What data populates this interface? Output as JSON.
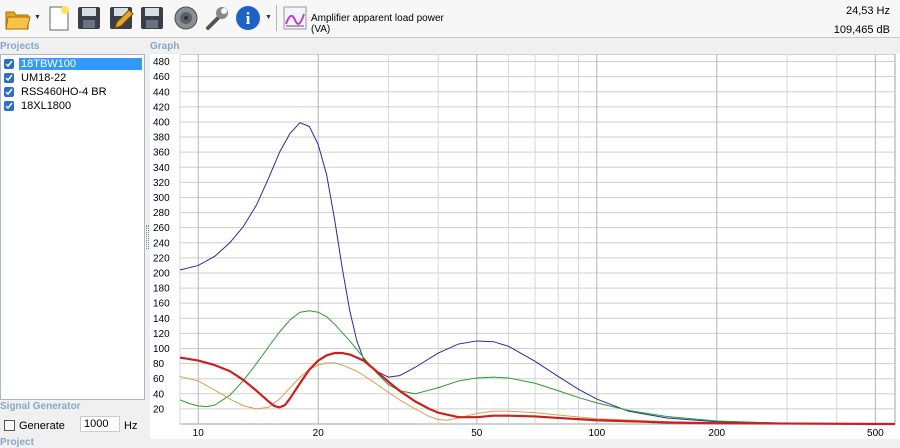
{
  "toolbar": {
    "chart_label": "Amplifier apparent load power (VA)",
    "readout_freq": "24,53 Hz",
    "readout_db": "109,465 dB"
  },
  "sections": {
    "projects": "Projects",
    "graph": "Graph",
    "signal_generator": "Signal Generator",
    "project": "Project"
  },
  "projects": [
    {
      "label": "18TBW100",
      "checked": true,
      "selected": true
    },
    {
      "label": "UM18-22",
      "checked": true,
      "selected": false
    },
    {
      "label": "RSS460HO-4 BR",
      "checked": true,
      "selected": false
    },
    {
      "label": "18XL1800",
      "checked": true,
      "selected": false
    }
  ],
  "generator": {
    "label": "Generate",
    "checked": false,
    "frequency": "1000",
    "unit": "Hz"
  },
  "chart_data": {
    "type": "line",
    "title": "Amplifier apparent load power (VA)",
    "x_scale": "log",
    "xlim": [
      9,
      560
    ],
    "ylim": [
      0,
      490
    ],
    "x_ticks": [
      10,
      20,
      50,
      100,
      200,
      500
    ],
    "y_ticks": [
      20,
      40,
      60,
      80,
      100,
      120,
      140,
      160,
      180,
      200,
      220,
      240,
      260,
      280,
      300,
      320,
      340,
      360,
      380,
      400,
      420,
      440,
      460,
      480
    ],
    "grid": true,
    "series": [
      {
        "color": "#2b2b9a",
        "width": 1,
        "points": [
          [
            9,
            204
          ],
          [
            10,
            210
          ],
          [
            11,
            222
          ],
          [
            12,
            240
          ],
          [
            13,
            262
          ],
          [
            14,
            290
          ],
          [
            15,
            325
          ],
          [
            16,
            360
          ],
          [
            17,
            385
          ],
          [
            18,
            399
          ],
          [
            19,
            394
          ],
          [
            20,
            370
          ],
          [
            21,
            330
          ],
          [
            22,
            270
          ],
          [
            23,
            205
          ],
          [
            24,
            150
          ],
          [
            25,
            110
          ],
          [
            26,
            86
          ],
          [
            28,
            70
          ],
          [
            30,
            62
          ],
          [
            32,
            64
          ],
          [
            35,
            75
          ],
          [
            40,
            94
          ],
          [
            45,
            106
          ],
          [
            50,
            110
          ],
          [
            55,
            109
          ],
          [
            60,
            103
          ],
          [
            70,
            83
          ],
          [
            80,
            63
          ],
          [
            90,
            46
          ],
          [
            100,
            33
          ],
          [
            120,
            17
          ],
          [
            150,
            8
          ],
          [
            200,
            3
          ],
          [
            300,
            1
          ],
          [
            560,
            0
          ]
        ]
      },
      {
        "color": "#2e9a2e",
        "width": 1,
        "points": [
          [
            9,
            32
          ],
          [
            9.5,
            27
          ],
          [
            10,
            24
          ],
          [
            10.5,
            23
          ],
          [
            11,
            25
          ],
          [
            12,
            38
          ],
          [
            13,
            58
          ],
          [
            14,
            80
          ],
          [
            15,
            102
          ],
          [
            16,
            122
          ],
          [
            17,
            138
          ],
          [
            18,
            148
          ],
          [
            19,
            150
          ],
          [
            20,
            148
          ],
          [
            21,
            142
          ],
          [
            22,
            132
          ],
          [
            24,
            110
          ],
          [
            26,
            88
          ],
          [
            28,
            68
          ],
          [
            30,
            52
          ],
          [
            32,
            44
          ],
          [
            35,
            40
          ],
          [
            40,
            48
          ],
          [
            45,
            57
          ],
          [
            50,
            61
          ],
          [
            55,
            62
          ],
          [
            60,
            61
          ],
          [
            70,
            54
          ],
          [
            80,
            44
          ],
          [
            90,
            35
          ],
          [
            100,
            28
          ],
          [
            120,
            18
          ],
          [
            150,
            10
          ],
          [
            200,
            4
          ],
          [
            300,
            1
          ],
          [
            560,
            0
          ]
        ]
      },
      {
        "color": "#d9a050",
        "width": 1,
        "points": [
          [
            9,
            63
          ],
          [
            10,
            57
          ],
          [
            11,
            45
          ],
          [
            12,
            33
          ],
          [
            13,
            24
          ],
          [
            14,
            20
          ],
          [
            15,
            22
          ],
          [
            16,
            33
          ],
          [
            17,
            48
          ],
          [
            18,
            62
          ],
          [
            19,
            72
          ],
          [
            20,
            78
          ],
          [
            21,
            81
          ],
          [
            22,
            81
          ],
          [
            23,
            78
          ],
          [
            25,
            70
          ],
          [
            28,
            53
          ],
          [
            30,
            42
          ],
          [
            32,
            32
          ],
          [
            35,
            20
          ],
          [
            38,
            10
          ],
          [
            40,
            6
          ],
          [
            42,
            5
          ],
          [
            45,
            8
          ],
          [
            50,
            14
          ],
          [
            55,
            17
          ],
          [
            60,
            17
          ],
          [
            70,
            15
          ],
          [
            80,
            12
          ],
          [
            100,
            7
          ],
          [
            150,
            3
          ],
          [
            200,
            1
          ],
          [
            560,
            0
          ]
        ]
      },
      {
        "color": "#cc1f1f",
        "width": 2.2,
        "points": [
          [
            9,
            88
          ],
          [
            10,
            84
          ],
          [
            11,
            78
          ],
          [
            12,
            70
          ],
          [
            13,
            58
          ],
          [
            14,
            44
          ],
          [
            15,
            30
          ],
          [
            15.5,
            24
          ],
          [
            16,
            22
          ],
          [
            16.5,
            25
          ],
          [
            17,
            34
          ],
          [
            18,
            54
          ],
          [
            19,
            72
          ],
          [
            20,
            84
          ],
          [
            21,
            91
          ],
          [
            22,
            94
          ],
          [
            23,
            94
          ],
          [
            24,
            92
          ],
          [
            26,
            84
          ],
          [
            28,
            70
          ],
          [
            30,
            56
          ],
          [
            32,
            44
          ],
          [
            35,
            30
          ],
          [
            38,
            20
          ],
          [
            40,
            15
          ],
          [
            45,
            9
          ],
          [
            50,
            9
          ],
          [
            55,
            11
          ],
          [
            60,
            11
          ],
          [
            70,
            10
          ],
          [
            80,
            8
          ],
          [
            100,
            5
          ],
          [
            150,
            2
          ],
          [
            200,
            1
          ],
          [
            560,
            0
          ]
        ]
      }
    ]
  }
}
